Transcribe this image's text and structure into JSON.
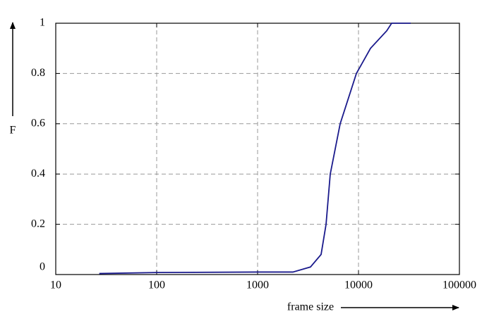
{
  "chart_data": {
    "type": "line",
    "xlabel": "frame size",
    "ylabel": "F",
    "x": [
      27,
      100,
      1000,
      2240,
      3340,
      4260,
      4770,
      5250,
      6580,
      9530,
      13150,
      19050,
      21300,
      32900
    ],
    "series": [
      {
        "color": "#1a1a8c",
        "values": [
          0.004,
          0.008,
          0.01,
          0.01,
          0.03,
          0.08,
          0.2,
          0.4,
          0.6,
          0.8,
          0.9,
          0.97,
          1,
          1
        ]
      }
    ],
    "xlim": [
      10,
      100000
    ],
    "xticks": [
      10,
      100,
      1000,
      10000,
      100000
    ],
    "xscale": "log",
    "ylim": [
      0,
      1
    ],
    "yticks": [
      0,
      0.2,
      0.4,
      0.6,
      0.8,
      1
    ],
    "grid": true
  }
}
